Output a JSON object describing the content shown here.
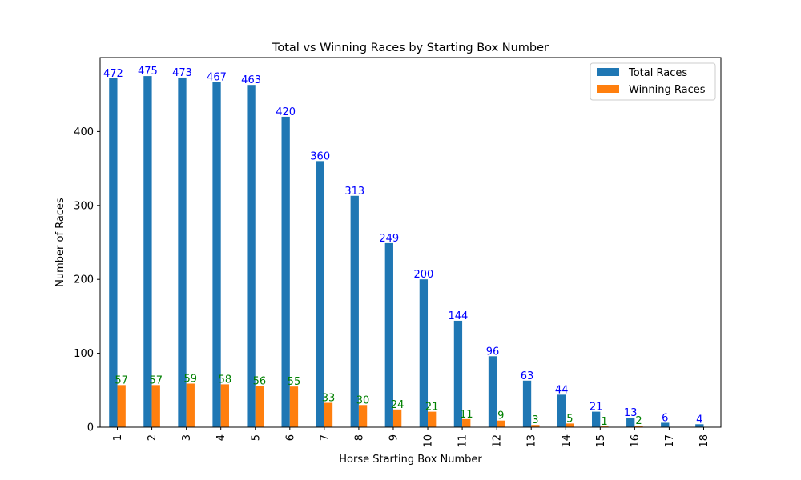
{
  "chart_data": {
    "type": "bar",
    "title": "Total vs Winning Races by Starting Box Number",
    "xlabel": "Horse Starting Box Number",
    "ylabel": "Number of Races",
    "categories": [
      "1",
      "2",
      "3",
      "4",
      "5",
      "6",
      "7",
      "8",
      "9",
      "10",
      "11",
      "12",
      "13",
      "14",
      "15",
      "16",
      "17",
      "18"
    ],
    "ylim": [
      0,
      500
    ],
    "yticks": [
      0,
      100,
      200,
      300,
      400
    ],
    "grid": false,
    "legend": "top-right",
    "series": [
      {
        "name": "Total Races",
        "color": "#1f77b4",
        "label_color": "#0000ff",
        "values": [
          472,
          475,
          473,
          467,
          463,
          420,
          360,
          313,
          249,
          200,
          144,
          96,
          63,
          44,
          21,
          13,
          6,
          4
        ],
        "labels": [
          "472",
          "475",
          "473",
          "467",
          "463",
          "420",
          "360",
          "313",
          "249",
          "200",
          "144",
          "96",
          "63",
          "44",
          "21",
          "13",
          "6",
          "4"
        ]
      },
      {
        "name": "Winning Races",
        "color": "#ff7f0e",
        "label_color": "#008000",
        "values": [
          57,
          57,
          59,
          58,
          56,
          55,
          33,
          30,
          24,
          21,
          11,
          9,
          3,
          5,
          1,
          2,
          0,
          0
        ],
        "labels": [
          "57",
          "57",
          "59",
          "58",
          "56",
          "55",
          "33",
          "30",
          "24",
          "21",
          "11",
          "9",
          "3",
          "5",
          "1",
          "2",
          "",
          ""
        ]
      }
    ]
  }
}
